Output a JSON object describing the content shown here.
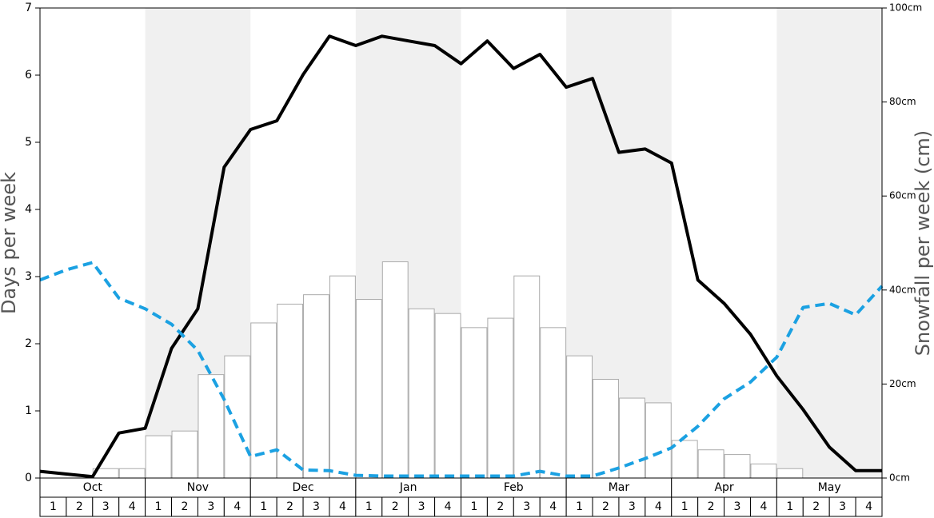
{
  "chart_data": {
    "type": "bar_line",
    "ylabel": "Days per week",
    "y2label": "Snowfall per week (cm)",
    "months": [
      "Oct",
      "Nov",
      "Dec",
      "Jan",
      "Feb",
      "Mar",
      "Apr",
      "May"
    ],
    "weeks": [
      1,
      2,
      3,
      4
    ],
    "shaded_months": [
      1,
      3,
      5,
      7
    ],
    "shade_color": "#f0f0f0",
    "ylim": [
      0,
      7
    ],
    "yticks": [
      0,
      1,
      2,
      3,
      4,
      5,
      6,
      7
    ],
    "y2lim": [
      0,
      100
    ],
    "y2ticks": [
      {
        "value": 0,
        "label": "0cm"
      },
      {
        "value": 20,
        "label": "20cm"
      },
      {
        "value": 40,
        "label": "40cm"
      },
      {
        "value": 60,
        "label": "60cm"
      },
      {
        "value": 80,
        "label": "80cm"
      },
      {
        "value": 100,
        "label": "100cm"
      }
    ],
    "series": [
      {
        "kind": "bar",
        "axis": "y2",
        "color": "#ffffff",
        "edge": "#aaaaaa",
        "values": [
          0,
          0,
          2,
          2,
          9,
          10,
          22,
          26,
          33,
          37,
          39,
          43,
          38,
          46,
          36,
          35,
          32,
          34,
          43,
          32,
          26,
          21,
          17,
          16,
          8,
          6,
          5,
          3,
          2,
          0,
          0,
          0
        ]
      },
      {
        "kind": "line",
        "color": "#000000",
        "dash": false,
        "values": [
          0.1,
          0.06,
          0.02,
          0.67,
          0.74,
          1.93,
          2.52,
          4.63,
          5.19,
          5.32,
          6.01,
          6.58,
          6.44,
          6.58,
          6.51,
          6.44,
          6.17,
          6.51,
          6.1,
          6.31,
          5.82,
          5.95,
          4.85,
          4.9,
          4.69,
          2.95,
          2.6,
          2.14,
          1.52,
          1.02,
          0.46,
          0.11,
          0.11
        ]
      },
      {
        "kind": "line",
        "color": "#1ba1e2",
        "dash": true,
        "values": [
          2.95,
          3.1,
          3.21,
          2.68,
          2.52,
          2.29,
          1.9,
          1.17,
          0.32,
          0.42,
          0.12,
          0.11,
          0.04,
          0.03,
          0.03,
          0.03,
          0.03,
          0.03,
          0.03,
          0.1,
          0.03,
          0.03,
          0.15,
          0.29,
          0.45,
          0.77,
          1.18,
          1.43,
          1.8,
          2.54,
          2.6,
          2.43,
          2.86
        ]
      }
    ]
  }
}
